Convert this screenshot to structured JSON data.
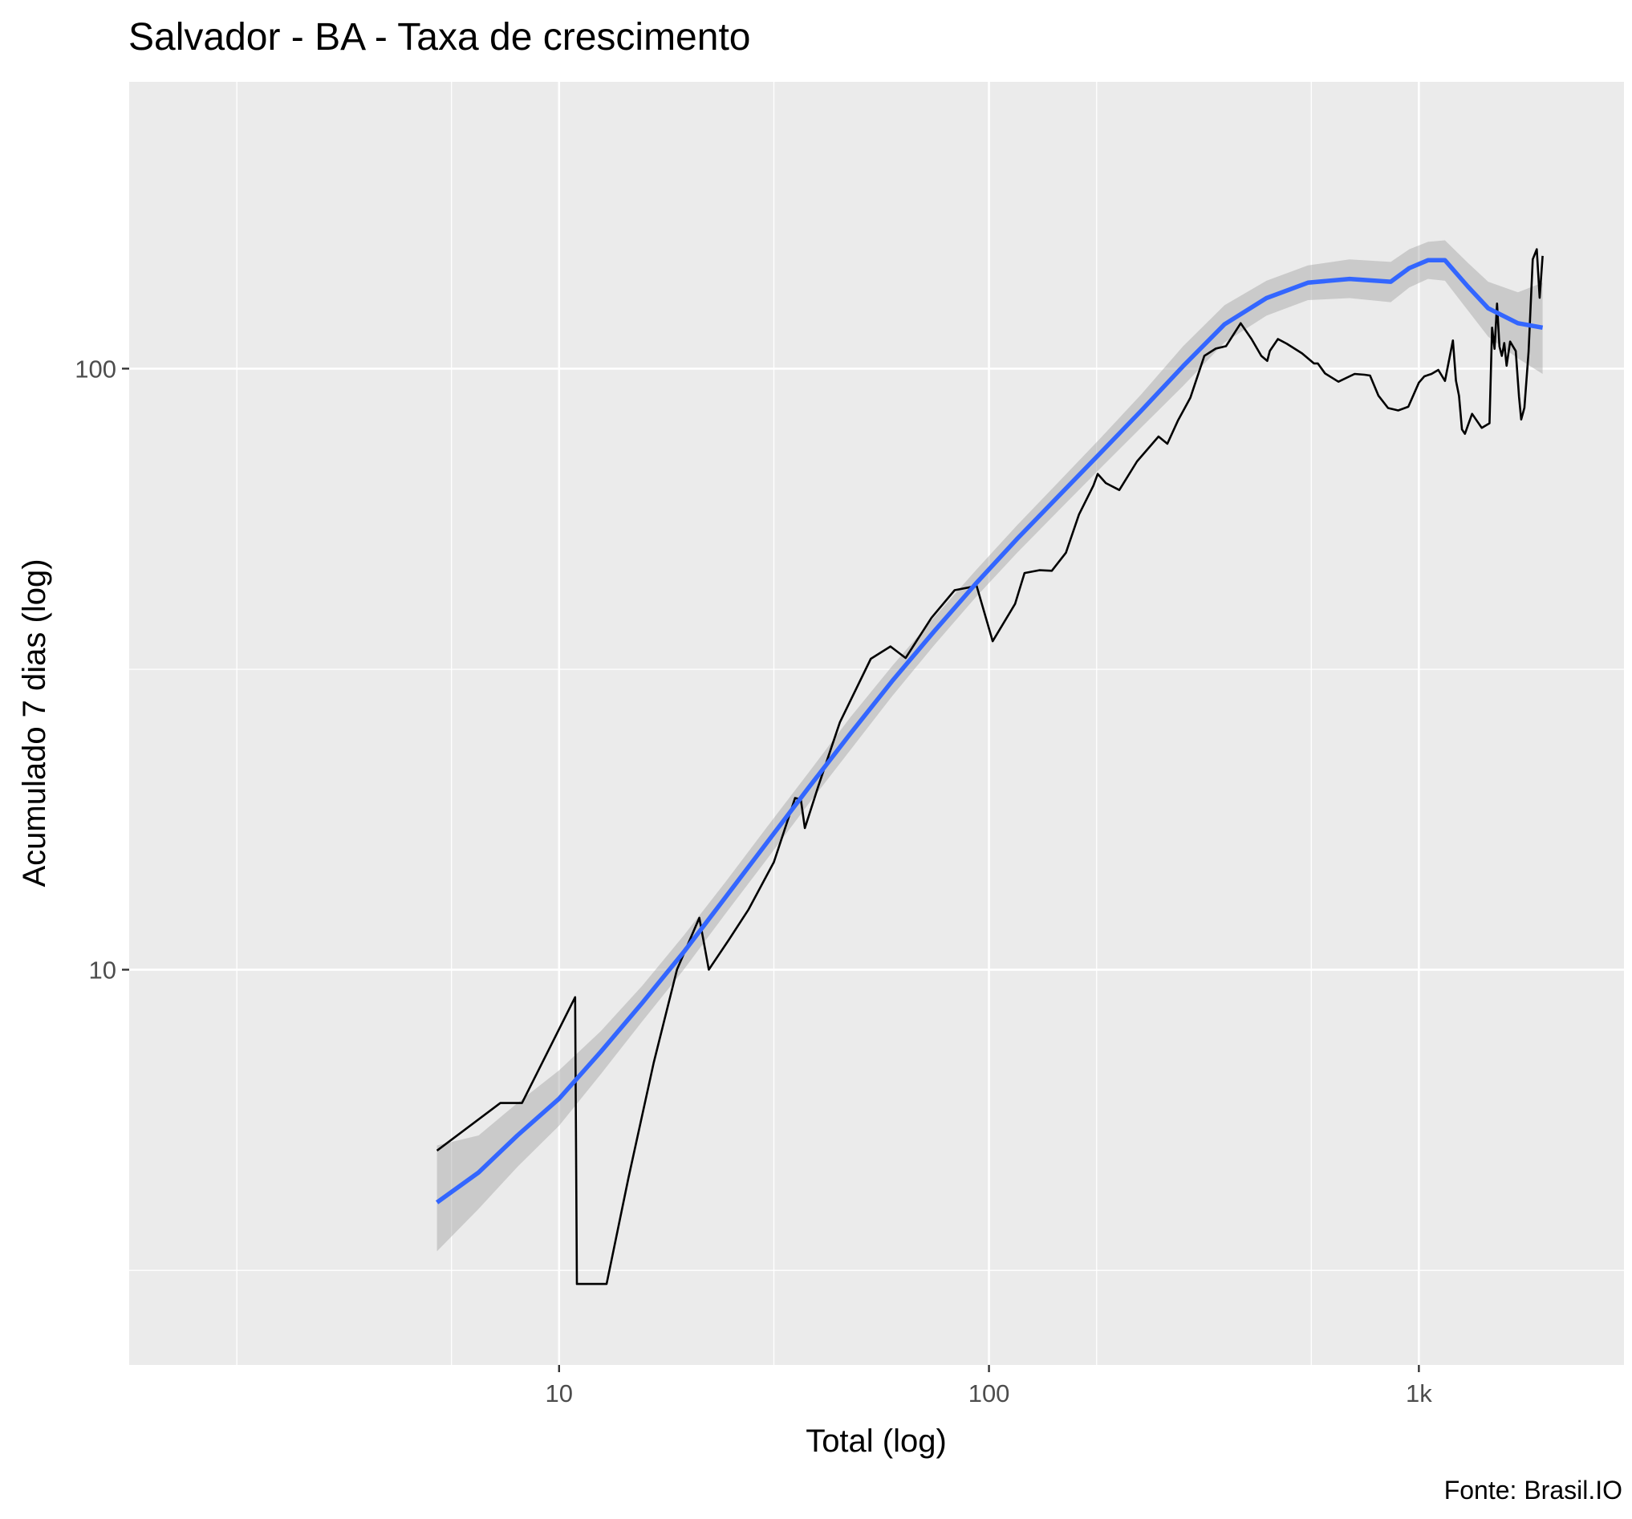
{
  "chart_data": {
    "type": "line",
    "title": "Salvador - BA - Taxa de crescimento",
    "xlabel": "Total (log)",
    "ylabel": "Acumulado 7 dias (log)",
    "caption": "Fonte: Brasil.IO",
    "x_scale": "log10",
    "y_scale": "log10",
    "xlim": [
      1.0,
      3000
    ],
    "ylim": [
      2.2,
      300
    ],
    "x_ticks": [
      {
        "value": 10,
        "label": "10"
      },
      {
        "value": 100,
        "label": "100"
      },
      {
        "value": 1000,
        "label": "1k"
      }
    ],
    "x_minor_ticks": [
      1.78,
      5.62,
      31.6,
      178,
      562
    ],
    "y_ticks": [
      {
        "value": 10,
        "label": "10"
      },
      {
        "value": 100,
        "label": "100"
      }
    ],
    "y_minor_ticks": [
      3.16,
      31.6
    ],
    "grid": true,
    "panel_background": "#ebebeb",
    "series": [
      {
        "kind": "observed",
        "color": "#000000",
        "x": [
          5.2,
          7.3,
          8.2,
          10.9,
          11.0,
          12.9,
          14.5,
          16.6,
          18.8,
          21.2,
          22.3,
          24.8,
          27.6,
          31.6,
          35.4,
          36.5,
          37.3,
          40.1,
          45.0,
          53.1,
          59.0,
          64.0,
          73.5,
          83.2,
          93.6,
          102,
          115,
          121,
          131,
          140,
          151,
          162,
          175,
          179,
          187,
          201,
          221,
          248,
          260,
          275,
          294,
          317,
          337,
          356,
          385,
          408,
          430,
          444,
          450,
          470,
          493,
          535,
          570,
          582,
          605,
          650,
          709,
          748,
          770,
          805,
          848,
          895,
          945,
          1000,
          1030,
          1070,
          1110,
          1150,
          1200,
          1220,
          1240,
          1260,
          1280,
          1300,
          1330,
          1350,
          1400,
          1460,
          1480,
          1500,
          1520,
          1540,
          1560,
          1580,
          1600,
          1630,
          1680,
          1710,
          1730,
          1760,
          1800,
          1840,
          1880,
          1910,
          1940
        ],
        "y": [
          5.0,
          6.0,
          6.0,
          9.0,
          3.0,
          3.0,
          4.5,
          7.0,
          10.0,
          12.2,
          10.0,
          11.2,
          12.6,
          15.1,
          19.3,
          19.2,
          17.2,
          20.2,
          25.8,
          32.9,
          34.5,
          33.0,
          38.5,
          42.8,
          43.5,
          35.2,
          40.6,
          45.7,
          46.2,
          46.1,
          49.4,
          57.2,
          63.9,
          66.8,
          64.5,
          62.8,
          70.1,
          77.1,
          75.0,
          81.9,
          89.4,
          105.0,
          108.0,
          109.0,
          119.0,
          112.0,
          105.0,
          103.0,
          107.0,
          112.0,
          110.0,
          106.0,
          102.0,
          102.0,
          98.2,
          95.1,
          98.0,
          97.7,
          97.4,
          90.2,
          86.0,
          85.2,
          86.4,
          94.8,
          97.1,
          98.0,
          99.5,
          95.4,
          111.4,
          95.5,
          90.1,
          79.2,
          77.9,
          80.4,
          84.1,
          82.8,
          79.7,
          81.1,
          117.0,
          107.9,
          128.3,
          108.9,
          105.0,
          110.3,
          101.1,
          110.9,
          107.0,
          89.8,
          82.3,
          86.1,
          106.7,
          152.0,
          158.0,
          131.2,
          154.0
        ]
      },
      {
        "kind": "smooth",
        "color": "#3366ff",
        "ribbon_color": "#999999",
        "x": [
          5.2,
          6.5,
          8.0,
          10.0,
          12.5,
          15.6,
          19.5,
          24.4,
          30.5,
          38.1,
          47.6,
          59.5,
          74.4,
          93.0,
          116,
          145,
          181,
          226,
          283,
          353,
          442,
          552,
          690,
          860,
          950,
          1050,
          1150,
          1300,
          1450,
          1700,
          1940
        ],
        "y": [
          4.1,
          4.6,
          5.3,
          6.1,
          7.3,
          8.8,
          10.7,
          13.2,
          16.3,
          20.1,
          24.7,
          30.2,
          36.5,
          43.8,
          52.0,
          61.3,
          72.2,
          85.1,
          101.0,
          118.5,
          131.0,
          139.0,
          141.0,
          139.5,
          147.0,
          151.5,
          151.5,
          137.0,
          126.0,
          119.0,
          117.0
        ],
        "lower": [
          3.4,
          4.0,
          4.7,
          5.5,
          6.7,
          8.2,
          10.0,
          12.4,
          15.3,
          18.9,
          23.2,
          28.5,
          34.6,
          41.6,
          49.3,
          58.0,
          68.1,
          79.8,
          93.6,
          110.5,
          122.5,
          130.0,
          131.0,
          129.0,
          136.5,
          141.0,
          140.0,
          125.0,
          113.0,
          104.0,
          98.0
        ],
        "upper": [
          5.1,
          5.3,
          6.0,
          6.8,
          7.9,
          9.4,
          11.4,
          14.0,
          17.3,
          21.3,
          26.3,
          32.0,
          38.5,
          46.1,
          54.8,
          64.7,
          76.4,
          90.6,
          109.0,
          127.5,
          140.0,
          148.5,
          152.0,
          150.5,
          158.0,
          162.5,
          163.5,
          150.0,
          139.5,
          134.0,
          139.0
        ]
      }
    ]
  }
}
